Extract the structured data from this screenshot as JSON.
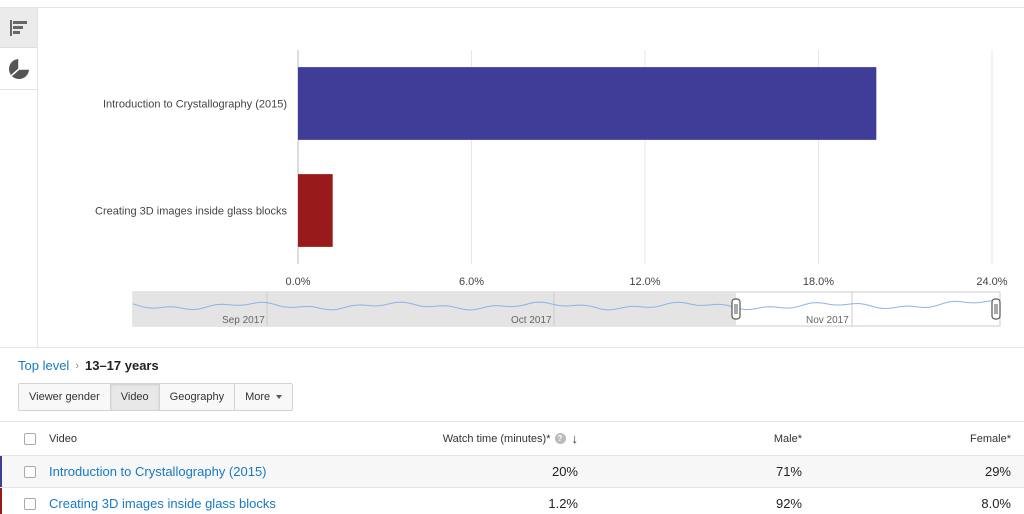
{
  "sidebar": {
    "buttons": [
      {
        "icon": "bar-chart-icon",
        "active": true
      },
      {
        "icon": "pie-chart-icon",
        "active": false
      }
    ]
  },
  "chart_data": {
    "type": "bar",
    "orientation": "horizontal",
    "categories": [
      "Introduction to Crystallography (2015)",
      "Creating 3D images inside glass blocks"
    ],
    "values": [
      20,
      1.2
    ],
    "colors": [
      "#403d98",
      "#991a1a"
    ],
    "xlim": [
      0,
      24
    ],
    "ticks": [
      "0.0%",
      "6.0%",
      "12.0%",
      "18.0%",
      "24.0%"
    ],
    "grid": true,
    "timeline": {
      "labels": [
        "Sep 2017",
        "Oct 2017",
        "Nov 2017"
      ],
      "selection": "Nov 2017"
    }
  },
  "breadcrumb": {
    "top": "Top level",
    "separator": "›",
    "current": "13–17 years"
  },
  "tabs": [
    {
      "label": "Viewer gender",
      "active": false
    },
    {
      "label": "Video",
      "active": true
    },
    {
      "label": "Geography",
      "active": false
    },
    {
      "label": "More",
      "active": false,
      "dropdown": true
    }
  ],
  "table": {
    "headers": {
      "video": "Video",
      "watch": "Watch time (minutes)*",
      "male": "Male*",
      "female": "Female*"
    },
    "rows": [
      {
        "video": "Introduction to Crystallography (2015)",
        "watch": "20%",
        "male": "71%",
        "female": "29%",
        "color": "#403d98"
      },
      {
        "video": "Creating 3D images inside glass blocks",
        "watch": "1.2%",
        "male": "92%",
        "female": "8.0%",
        "color": "#991a1a"
      }
    ]
  }
}
